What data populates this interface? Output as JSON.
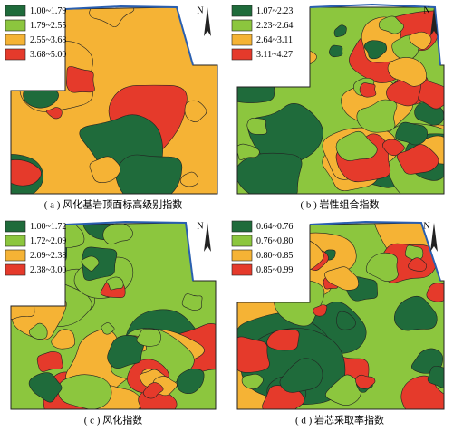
{
  "panels": [
    {
      "caption": "( a ) 风化基岩顶面标高级别指数",
      "north": "N",
      "legend": [
        {
          "label": "1.00~1.79",
          "color": "#1f6b3b"
        },
        {
          "label": "1.79~2.55",
          "color": "#8cc63e"
        },
        {
          "label": "2.55~3.68",
          "color": "#f5b335"
        },
        {
          "label": "3.68~5.00",
          "color": "#e53a2b"
        }
      ]
    },
    {
      "caption": "( b ) 岩性组合指数",
      "north": "N",
      "legend": [
        {
          "label": "1.07~2.23",
          "color": "#1f6b3b"
        },
        {
          "label": "2.23~2.64",
          "color": "#8cc63e"
        },
        {
          "label": "2.64~3.11",
          "color": "#f5b335"
        },
        {
          "label": "3.11~4.27",
          "color": "#e53a2b"
        }
      ]
    },
    {
      "caption": "( c ) 风化指数",
      "north": "N",
      "legend": [
        {
          "label": "1.00~1.72",
          "color": "#1f6b3b"
        },
        {
          "label": "1.72~2.09",
          "color": "#8cc63e"
        },
        {
          "label": "2.09~2.38",
          "color": "#f5b335"
        },
        {
          "label": "2.38~3.00",
          "color": "#e53a2b"
        }
      ]
    },
    {
      "caption": "( d ) 岩芯采取率指数",
      "north": "N",
      "legend": [
        {
          "label": "0.64~0.76",
          "color": "#1f6b3b"
        },
        {
          "label": "0.76~0.80",
          "color": "#8cc63e"
        },
        {
          "label": "0.80~0.85",
          "color": "#f5b335"
        },
        {
          "label": "0.85~0.99",
          "color": "#e53a2b"
        }
      ]
    }
  ]
}
